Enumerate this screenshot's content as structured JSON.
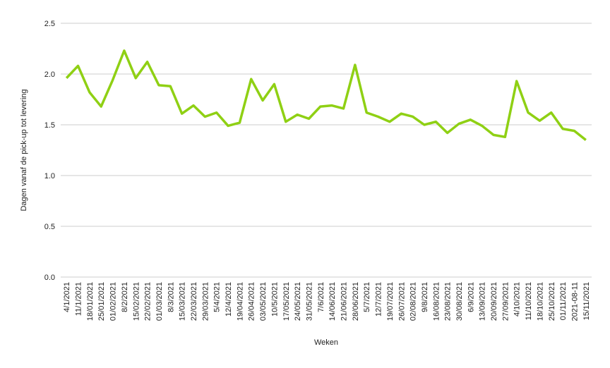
{
  "chart_data": {
    "type": "line",
    "x_label": "Weken",
    "y_label": "Dagen vanaf de pick-up tot levering",
    "categories": [
      "4/1/2021",
      "11/1/2021",
      "18/01/2021",
      "25/01/2021",
      "01/02/2021",
      "8/2/2021",
      "15/02/2021",
      "22/02/2021",
      "01/03/2021",
      "8/3/2021",
      "15/03/2021",
      "22/03/2021",
      "29/03/2021",
      "5/4/2021",
      "12/4/2021",
      "19/04/2021",
      "26/04/2021",
      "03/05/2021",
      "10/5/2021",
      "17/05/2021",
      "24/05/2021",
      "31/05/2021",
      "7/6/2021",
      "14/06/2021",
      "21/06/2021",
      "28/06/2021",
      "5/7/2021",
      "12/7/2021",
      "19/07/2021",
      "26/07/2021",
      "02/08/2021",
      "9/8/2021",
      "16/08/2021",
      "23/08/2021",
      "30/08/2021",
      "6/9/2021",
      "13/09/2021",
      "20/09/2021",
      "27/09/2021",
      "4/10/2021",
      "11/10/2021",
      "18/10/2021",
      "25/10/2021",
      "01/11/2021",
      "2021-08-11",
      "15/11/2021"
    ],
    "values": [
      1.96,
      2.08,
      1.82,
      1.68,
      1.94,
      2.23,
      1.96,
      2.12,
      1.89,
      1.88,
      1.61,
      1.69,
      1.58,
      1.62,
      1.49,
      1.52,
      1.95,
      1.74,
      1.9,
      1.53,
      1.6,
      1.56,
      1.68,
      1.69,
      1.66,
      2.09,
      1.62,
      1.58,
      1.53,
      1.61,
      1.58,
      1.5,
      1.53,
      1.42,
      1.51,
      1.55,
      1.49,
      1.4,
      1.38,
      1.93,
      1.62,
      1.54,
      1.62,
      1.46,
      1.44,
      1.35
    ],
    "color": "#8fd014",
    "ylim": [
      0,
      2.5
    ],
    "yticks": [
      {
        "value": 0,
        "label": "0.0"
      },
      0.5,
      {
        "value": 1,
        "label": "1.0"
      },
      1.5,
      {
        "value": 2,
        "label": "2.0"
      },
      2.5
    ],
    "grid": true
  }
}
